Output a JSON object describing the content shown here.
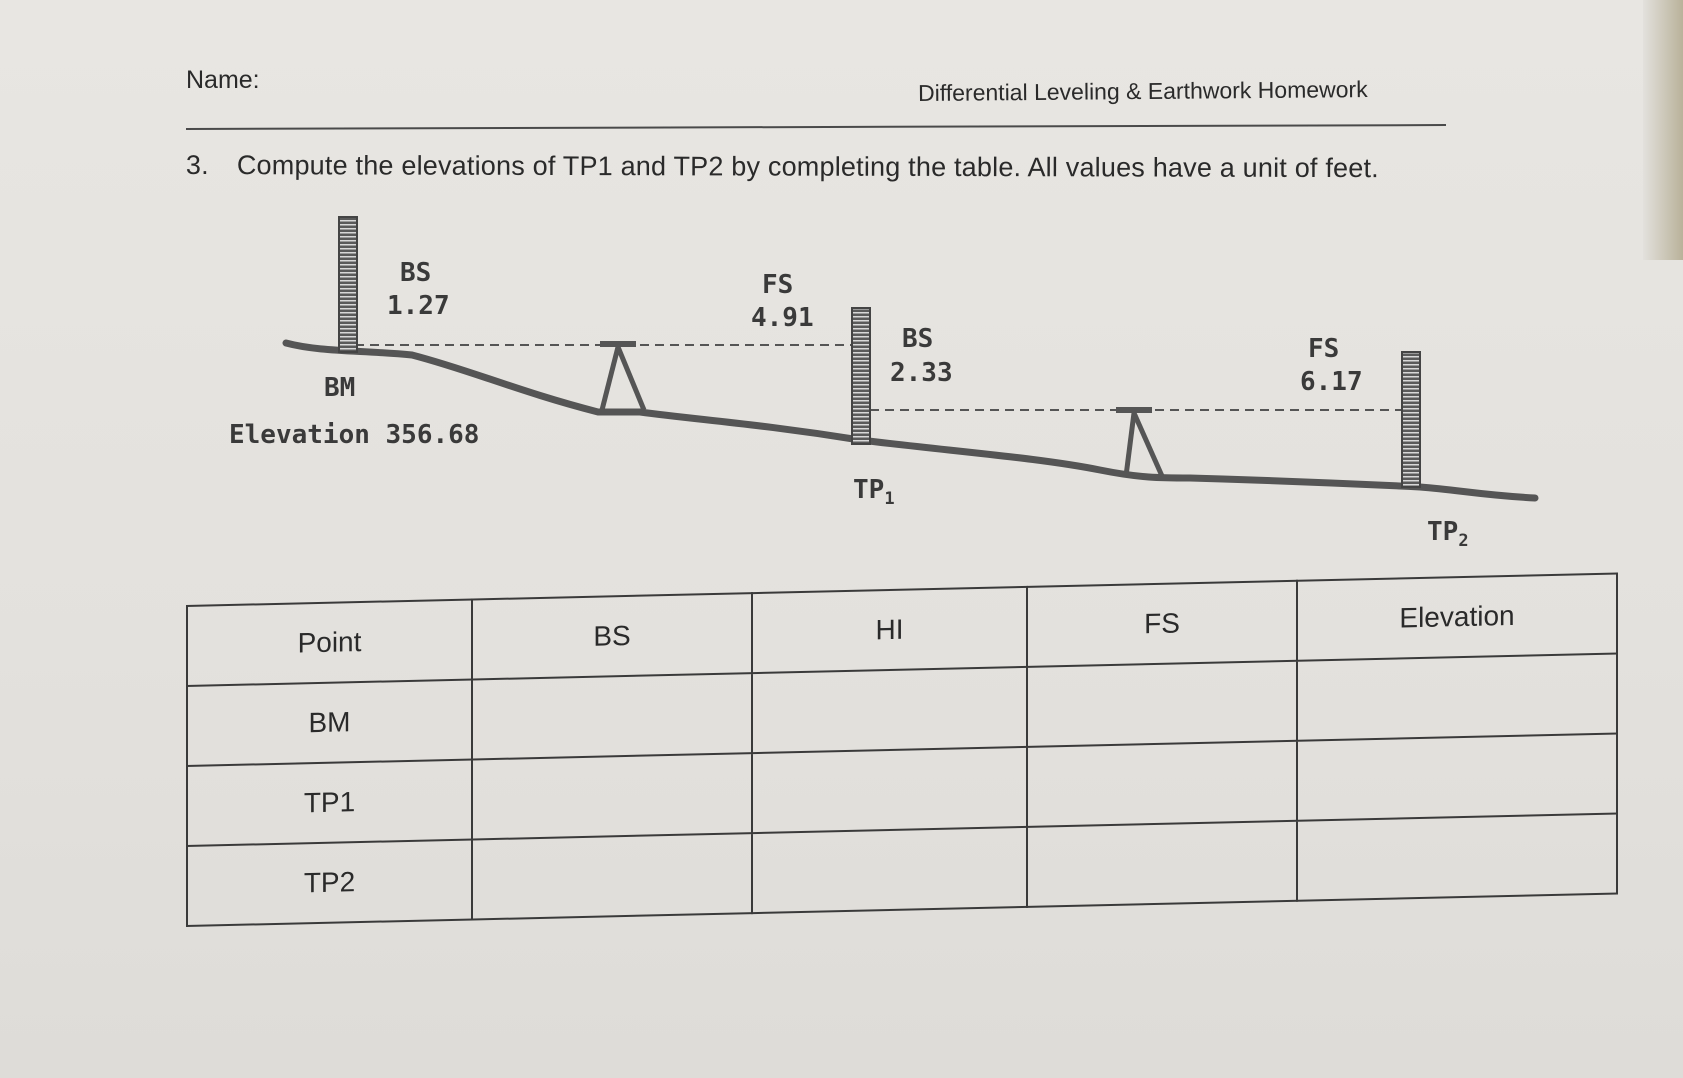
{
  "header": {
    "name_label": "Name:",
    "homework_title": "Differential Leveling & Earthwork Homework"
  },
  "question": {
    "number": "3.",
    "text": "Compute the elevations of TP1 and TP2 by completing the table. All values have a unit of feet."
  },
  "diagram": {
    "bs1_label": "BS",
    "bs1_value": "1.27",
    "fs1_label": "FS",
    "fs1_value": "4.91",
    "bs2_label": "BS",
    "bs2_value": "2.33",
    "fs2_label": "FS",
    "fs2_value": "6.17",
    "bm_label": "BM",
    "elevation_label": "Elevation 356.68",
    "tp1_label": "TP",
    "tp1_sub": "1",
    "tp2_label": "TP",
    "tp2_sub": "2"
  },
  "table": {
    "headers": [
      "Point",
      "BS",
      "HI",
      "FS",
      "Elevation"
    ],
    "rows": [
      {
        "point": "BM",
        "bs": "",
        "hi": "",
        "fs": "",
        "elevation": ""
      },
      {
        "point": "TP1",
        "bs": "",
        "hi": "",
        "fs": "",
        "elevation": ""
      },
      {
        "point": "TP2",
        "bs": "",
        "hi": "",
        "fs": "",
        "elevation": ""
      }
    ]
  }
}
